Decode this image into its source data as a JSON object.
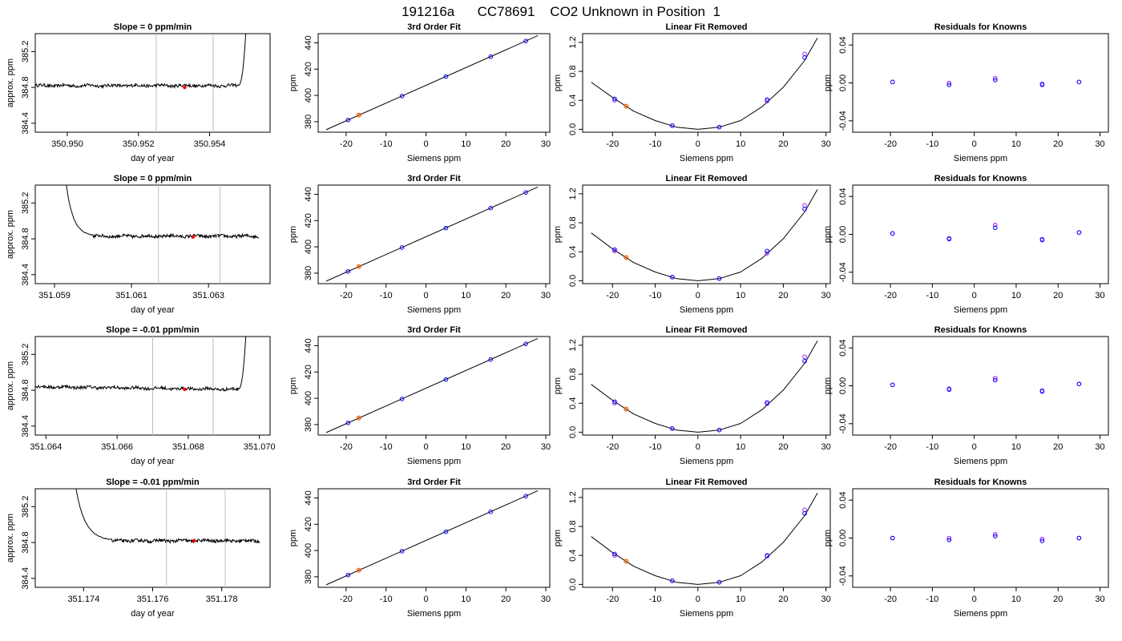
{
  "figure_title": "191216a      CC78691    CO2 Unknown in Position  1",
  "colors": {
    "trace": "#000000",
    "marker_line": "#bebebe",
    "current_point": "#ff0000",
    "unknown_point": "#ff6600",
    "known_point": "#0000ff",
    "fit_point": "#a020f0"
  },
  "chart_data": [
    {
      "type": "line",
      "title": "Slope =  0  ppm/min",
      "xlabel": "day of year",
      "ylabel": "approx. ppm",
      "xlim": [
        350.9491,
        350.9557
      ],
      "ylim": [
        384.3,
        385.4
      ],
      "xticks": [
        "350.950",
        "350.952",
        "350.954"
      ],
      "yticks": [
        "384.4",
        "384.8",
        "385.2"
      ],
      "vlines": [
        350.9525,
        350.9541
      ],
      "start_level": 384.82,
      "plateau_level": 384.82,
      "plateau_from": 350.9491,
      "plateau_to": 350.9548,
      "spike": "end",
      "current_point": {
        "x": 350.9533,
        "y": 384.8
      }
    },
    {
      "type": "scatter",
      "title": "3rd Order Fit",
      "xlabel": "Siemens ppm",
      "ylabel": "ppm",
      "xlim": [
        -27,
        31
      ],
      "ylim": [
        372,
        447
      ],
      "xticks": [
        "-20",
        "-10",
        "0",
        "10",
        "20",
        "30"
      ],
      "yticks": [
        "380",
        "400",
        "420",
        "440"
      ],
      "line": {
        "x": [
          -25,
          28
        ],
        "y": [
          373.9,
          445.5
        ]
      },
      "known_points": {
        "x": [
          -19.5,
          -6,
          5,
          16.2,
          25
        ],
        "y": [
          381.3,
          399.5,
          414.3,
          429.5,
          441.4
        ]
      },
      "unknown_point": {
        "x": -16.8,
        "y": 385
      }
    },
    {
      "type": "scatter",
      "title": "Linear Fit Removed",
      "xlabel": "Siemens ppm",
      "ylabel": "ppm",
      "xlim": [
        -27,
        31
      ],
      "ylim": [
        -0.04,
        1.32
      ],
      "xticks": [
        "-20",
        "-10",
        "0",
        "10",
        "20",
        "30"
      ],
      "yticks": [
        "0.0",
        "0.4",
        "0.8",
        "1.2"
      ],
      "curve_x": [
        -25,
        -20,
        -15,
        -10,
        -5,
        0,
        5,
        10,
        15,
        20,
        25,
        28
      ],
      "curve_y": [
        0.65,
        0.44,
        0.25,
        0.12,
        0.03,
        0,
        0.03,
        0.12,
        0.31,
        0.58,
        0.95,
        1.26
      ],
      "known_points": {
        "x": [
          -19.5,
          -6,
          5,
          16.2,
          25
        ],
        "y": [
          0.42,
          0.05,
          0.03,
          0.41,
          0.99
        ]
      },
      "fit_points": {
        "x": [
          -19.5,
          -6,
          5,
          16.2,
          25
        ],
        "y": [
          0.4,
          0.05,
          0.03,
          0.39,
          1.04
        ]
      },
      "unknown_point": {
        "x": -16.8,
        "y": 0.32
      }
    },
    {
      "type": "scatter",
      "title": "Residuals for Knowns",
      "xlabel": "Siemens ppm",
      "ylabel": "ppm",
      "xlim": [
        -29,
        32
      ],
      "ylim": [
        -0.052,
        0.052
      ],
      "xticks": [
        "-20",
        "-10",
        "0",
        "10",
        "20",
        "30"
      ],
      "yticks": [
        "-0.04",
        "0.00",
        "0.04"
      ],
      "known_points": {
        "x": [
          -19.5,
          -6,
          5,
          16.2,
          25
        ],
        "y": [
          0.001,
          -0.002,
          0.003,
          -0.002,
          0.001
        ]
      },
      "fit_points": {
        "x": [
          -19.5,
          -6,
          5,
          16.2,
          25
        ],
        "y": [
          0.001,
          0,
          0.005,
          -0.001,
          0.001
        ]
      }
    },
    {
      "type": "line",
      "title": "Slope =  0  ppm/min",
      "xlabel": "day of year",
      "ylabel": "approx. ppm",
      "xlim": [
        351.0585,
        351.0646
      ],
      "ylim": [
        384.3,
        385.4
      ],
      "xticks": [
        "351.059",
        "351.061",
        "351.063"
      ],
      "yticks": [
        "384.4",
        "384.8",
        "385.2"
      ],
      "vlines": [
        351.0617,
        351.0633
      ],
      "start_level": 385.4,
      "plateau_level": 384.83,
      "plateau_from": 351.06,
      "plateau_to": 351.0643,
      "spike": "start",
      "current_point": {
        "x": 351.0626,
        "y": 384.82
      }
    },
    {
      "type": "scatter",
      "title": "3rd Order Fit",
      "xlabel": "Siemens ppm",
      "ylabel": "ppm",
      "xlim": [
        -27,
        31
      ],
      "ylim": [
        372,
        447
      ],
      "xticks": [
        "-20",
        "-10",
        "0",
        "10",
        "20",
        "30"
      ],
      "yticks": [
        "380",
        "400",
        "420",
        "440"
      ],
      "line": {
        "x": [
          -25,
          28
        ],
        "y": [
          373.9,
          445.5
        ]
      },
      "known_points": {
        "x": [
          -19.5,
          -6,
          5,
          16.2,
          25
        ],
        "y": [
          381.3,
          399.5,
          414.3,
          429.5,
          441.4
        ]
      },
      "unknown_point": {
        "x": -16.8,
        "y": 385
      }
    },
    {
      "type": "scatter",
      "title": "Linear Fit Removed",
      "xlabel": "Siemens ppm",
      "ylabel": "ppm",
      "xlim": [
        -27,
        31
      ],
      "ylim": [
        -0.04,
        1.32
      ],
      "xticks": [
        "-20",
        "-10",
        "0",
        "10",
        "20",
        "30"
      ],
      "yticks": [
        "0.0",
        "0.4",
        "0.8",
        "1.2"
      ],
      "curve_x": [
        -25,
        -20,
        -15,
        -10,
        -5,
        0,
        5,
        10,
        15,
        20,
        25,
        28
      ],
      "curve_y": [
        0.66,
        0.44,
        0.25,
        0.12,
        0.03,
        0,
        0.03,
        0.12,
        0.31,
        0.58,
        0.95,
        1.26
      ],
      "known_points": {
        "x": [
          -19.5,
          -6,
          5,
          16.2,
          25
        ],
        "y": [
          0.43,
          0.05,
          0.03,
          0.41,
          0.99
        ]
      },
      "fit_points": {
        "x": [
          -19.5,
          -6,
          5,
          16.2,
          25
        ],
        "y": [
          0.41,
          0.05,
          0.03,
          0.38,
          1.04
        ]
      },
      "unknown_point": {
        "x": -16.8,
        "y": 0.32
      }
    },
    {
      "type": "scatter",
      "title": "Residuals for Knowns",
      "xlabel": "Siemens ppm",
      "ylabel": "ppm",
      "xlim": [
        -29,
        32
      ],
      "ylim": [
        -0.052,
        0.052
      ],
      "xticks": [
        "-20",
        "-10",
        "0",
        "10",
        "20",
        "30"
      ],
      "yticks": [
        "-0.04",
        "0.00",
        "0.04"
      ],
      "known_points": {
        "x": [
          -19.5,
          -6,
          5,
          16.2,
          25
        ],
        "y": [
          0.001,
          -0.005,
          0.007,
          -0.006,
          0.002
        ]
      },
      "fit_points": {
        "x": [
          -19.5,
          -6,
          5,
          16.2,
          25
        ],
        "y": [
          0.001,
          -0.004,
          0.01,
          -0.005,
          0.002
        ]
      }
    },
    {
      "type": "line",
      "title": "Slope =  -0.01  ppm/min",
      "xlabel": "day of year",
      "ylabel": "approx. ppm",
      "xlim": [
        351.0637,
        351.0703
      ],
      "ylim": [
        384.3,
        385.4
      ],
      "xticks": [
        "351.064",
        "351.066",
        "351.068",
        "351.070"
      ],
      "yticks": [
        "384.4",
        "384.8",
        "385.2"
      ],
      "vlines": [
        351.067,
        351.0687
      ],
      "start_level": 384.84,
      "plateau_level": 384.81,
      "plateau_from": 351.0637,
      "plateau_to": 351.0694,
      "spike": "end",
      "current_point": {
        "x": 351.0679,
        "y": 384.81
      }
    },
    {
      "type": "scatter",
      "title": "3rd Order Fit",
      "xlabel": "Siemens ppm",
      "ylabel": "ppm",
      "xlim": [
        -27,
        31
      ],
      "ylim": [
        372,
        447
      ],
      "xticks": [
        "-20",
        "-10",
        "0",
        "10",
        "20",
        "30"
      ],
      "yticks": [
        "380",
        "400",
        "420",
        "440"
      ],
      "line": {
        "x": [
          -25,
          28
        ],
        "y": [
          373.9,
          445.5
        ]
      },
      "known_points": {
        "x": [
          -19.5,
          -6,
          5,
          16.2,
          25
        ],
        "y": [
          381.3,
          399.5,
          414.3,
          429.5,
          441.4
        ]
      },
      "unknown_point": {
        "x": -16.8,
        "y": 385
      }
    },
    {
      "type": "scatter",
      "title": "Linear Fit Removed",
      "xlabel": "Siemens ppm",
      "ylabel": "ppm",
      "xlim": [
        -27,
        31
      ],
      "ylim": [
        -0.04,
        1.32
      ],
      "xticks": [
        "-20",
        "-10",
        "0",
        "10",
        "20",
        "30"
      ],
      "yticks": [
        "0.0",
        "0.4",
        "0.8",
        "1.2"
      ],
      "curve_x": [
        -25,
        -20,
        -15,
        -10,
        -5,
        0,
        5,
        10,
        15,
        20,
        25,
        28
      ],
      "curve_y": [
        0.66,
        0.44,
        0.25,
        0.12,
        0.03,
        0,
        0.03,
        0.12,
        0.31,
        0.58,
        0.95,
        1.26
      ],
      "known_points": {
        "x": [
          -19.5,
          -6,
          5,
          16.2,
          25
        ],
        "y": [
          0.42,
          0.05,
          0.03,
          0.41,
          0.98
        ]
      },
      "fit_points": {
        "x": [
          -19.5,
          -6,
          5,
          16.2,
          25
        ],
        "y": [
          0.4,
          0.05,
          0.03,
          0.39,
          1.04
        ]
      },
      "unknown_point": {
        "x": -16.8,
        "y": 0.32
      }
    },
    {
      "type": "scatter",
      "title": "Residuals for Knowns",
      "xlabel": "Siemens ppm",
      "ylabel": "ppm",
      "xlim": [
        -29,
        32
      ],
      "ylim": [
        -0.052,
        0.052
      ],
      "xticks": [
        "-20",
        "-10",
        "0",
        "10",
        "20",
        "30"
      ],
      "yticks": [
        "-0.04",
        "0.00",
        "0.04"
      ],
      "known_points": {
        "x": [
          -19.5,
          -6,
          5,
          16.2,
          25
        ],
        "y": [
          0.001,
          -0.004,
          0.006,
          -0.006,
          0.002
        ]
      },
      "fit_points": {
        "x": [
          -19.5,
          -6,
          5,
          16.2,
          25
        ],
        "y": [
          0.001,
          -0.003,
          0.008,
          -0.005,
          0.002
        ]
      }
    },
    {
      "type": "line",
      "title": "Slope =  -0.01  ppm/min",
      "xlabel": "day of year",
      "ylabel": "approx. ppm",
      "xlim": [
        351.1726,
        351.1794
      ],
      "ylim": [
        384.3,
        385.4
      ],
      "xticks": [
        "351.174",
        "351.176",
        "351.178"
      ],
      "yticks": [
        "384.4",
        "384.8",
        "385.2"
      ],
      "vlines": [
        351.1764,
        351.1781
      ],
      "start_level": 385.4,
      "plateau_level": 384.82,
      "plateau_from": 351.1748,
      "plateau_to": 351.1791,
      "spike": "start",
      "current_point": {
        "x": 351.1772,
        "y": 384.82
      }
    },
    {
      "type": "scatter",
      "title": "3rd Order Fit",
      "xlabel": "Siemens ppm",
      "ylabel": "ppm",
      "xlim": [
        -27,
        31
      ],
      "ylim": [
        372,
        447
      ],
      "xticks": [
        "-20",
        "-10",
        "0",
        "10",
        "20",
        "30"
      ],
      "yticks": [
        "380",
        "400",
        "420",
        "440"
      ],
      "line": {
        "x": [
          -25,
          28
        ],
        "y": [
          373.9,
          445.5
        ]
      },
      "known_points": {
        "x": [
          -19.5,
          -6,
          5,
          16.2,
          25
        ],
        "y": [
          381.3,
          399.5,
          414.3,
          429.5,
          441.4
        ]
      },
      "unknown_point": {
        "x": -16.8,
        "y": 385
      }
    },
    {
      "type": "scatter",
      "title": "Linear Fit Removed",
      "xlabel": "Siemens ppm",
      "ylabel": "ppm",
      "xlim": [
        -27,
        31
      ],
      "ylim": [
        -0.04,
        1.32
      ],
      "xticks": [
        "-20",
        "-10",
        "0",
        "10",
        "20",
        "30"
      ],
      "yticks": [
        "0.0",
        "0.4",
        "0.8",
        "1.2"
      ],
      "curve_x": [
        -25,
        -20,
        -15,
        -10,
        -5,
        0,
        5,
        10,
        15,
        20,
        25,
        28
      ],
      "curve_y": [
        0.66,
        0.44,
        0.25,
        0.12,
        0.03,
        0,
        0.03,
        0.12,
        0.31,
        0.58,
        0.95,
        1.26
      ],
      "known_points": {
        "x": [
          -19.5,
          -6,
          5,
          16.2,
          25
        ],
        "y": [
          0.42,
          0.05,
          0.03,
          0.4,
          0.98
        ]
      },
      "fit_points": {
        "x": [
          -19.5,
          -6,
          5,
          16.2,
          25
        ],
        "y": [
          0.4,
          0.05,
          0.03,
          0.39,
          1.03
        ]
      },
      "unknown_point": {
        "x": -16.8,
        "y": 0.32
      }
    },
    {
      "type": "scatter",
      "title": "Residuals for Knowns",
      "xlabel": "Siemens ppm",
      "ylabel": "ppm",
      "xlim": [
        -29,
        32
      ],
      "ylim": [
        -0.052,
        0.052
      ],
      "xticks": [
        "-20",
        "-10",
        "0",
        "10",
        "20",
        "30"
      ],
      "yticks": [
        "-0.04",
        "0.00",
        "0.04"
      ],
      "known_points": {
        "x": [
          -19.5,
          -6,
          5,
          16.2,
          25
        ],
        "y": [
          0,
          -0.002,
          0.002,
          -0.003,
          0
        ]
      },
      "fit_points": {
        "x": [
          -19.5,
          -6,
          5,
          16.2,
          25
        ],
        "y": [
          0,
          0,
          0.004,
          -0.001,
          0
        ]
      }
    }
  ]
}
